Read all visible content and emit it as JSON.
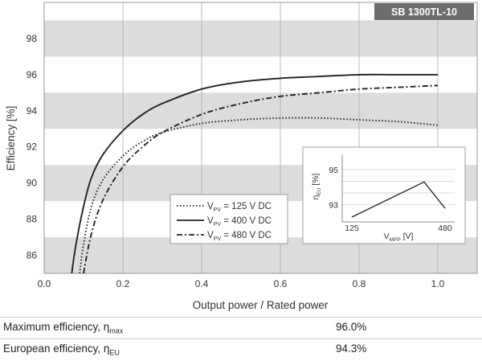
{
  "chart_data": {
    "type": "line",
    "badge": "SB 1300TL-10",
    "xlabel": "Output power / Rated power",
    "ylabel": "Efficiency [%]",
    "xlim": [
      0,
      1.1
    ],
    "ylim": [
      85,
      100
    ],
    "x_ticks": [
      "0.0",
      "0.2",
      "0.4",
      "0.6",
      "0.8",
      "1.0"
    ],
    "y_ticks": [
      "86",
      "88",
      "90",
      "92",
      "94",
      "96",
      "98"
    ],
    "grid": "vertical lines and horizontal bands",
    "legend_position": "center-left",
    "series": [
      {
        "name_main": "V",
        "name_sub": "PV",
        "name_tail": " = 125 V DC",
        "style": "dotted",
        "x": [
          0.09,
          0.1,
          0.12,
          0.15,
          0.2,
          0.25,
          0.3,
          0.4,
          0.5,
          0.6,
          0.7,
          0.8,
          0.9,
          1.0
        ],
        "y": [
          85.0,
          86.6,
          88.7,
          90.2,
          91.5,
          92.3,
          92.8,
          93.3,
          93.5,
          93.6,
          93.6,
          93.5,
          93.4,
          93.2
        ]
      },
      {
        "name_main": "V",
        "name_sub": "PV",
        "name_tail": " = 400 V DC",
        "style": "solid",
        "x": [
          0.07,
          0.08,
          0.1,
          0.12,
          0.15,
          0.2,
          0.25,
          0.3,
          0.4,
          0.5,
          0.6,
          0.7,
          0.8,
          0.9,
          1.0
        ],
        "y": [
          85.0,
          86.5,
          88.7,
          90.3,
          91.6,
          92.9,
          93.8,
          94.4,
          95.2,
          95.6,
          95.8,
          95.9,
          96.0,
          96.0,
          96.0
        ]
      },
      {
        "name_main": "V",
        "name_sub": "PV",
        "name_tail": " = 480 V DC",
        "style": "dashdot",
        "x": [
          0.1,
          0.12,
          0.15,
          0.2,
          0.25,
          0.3,
          0.4,
          0.5,
          0.6,
          0.7,
          0.8,
          0.9,
          1.0
        ],
        "y": [
          85.0,
          87.2,
          89.1,
          90.9,
          92.0,
          92.8,
          93.8,
          94.4,
          94.8,
          95.0,
          95.2,
          95.3,
          95.4
        ]
      }
    ],
    "inset": {
      "ylabel_main": "η",
      "ylabel_sub": "EU",
      "ylabel_tail": " [%]",
      "xlabel_main": "V",
      "xlabel_sub": "MPP",
      "xlabel_tail": " [V]",
      "x_ticks": [
        "125",
        "480"
      ],
      "y_ticks": [
        "95",
        "93"
      ],
      "xlim": [
        125,
        480
      ],
      "ylim": [
        92.3,
        95.5
      ],
      "x": [
        125,
        400,
        480
      ],
      "y": [
        92.3,
        94.3,
        92.8
      ]
    }
  },
  "summary": {
    "max_label": "Maximum efficiency, η",
    "max_sub": "max",
    "max_value": "96.0%",
    "eu_label": "European efficiency, η",
    "eu_sub": "EU",
    "eu_value": "94.3%"
  }
}
